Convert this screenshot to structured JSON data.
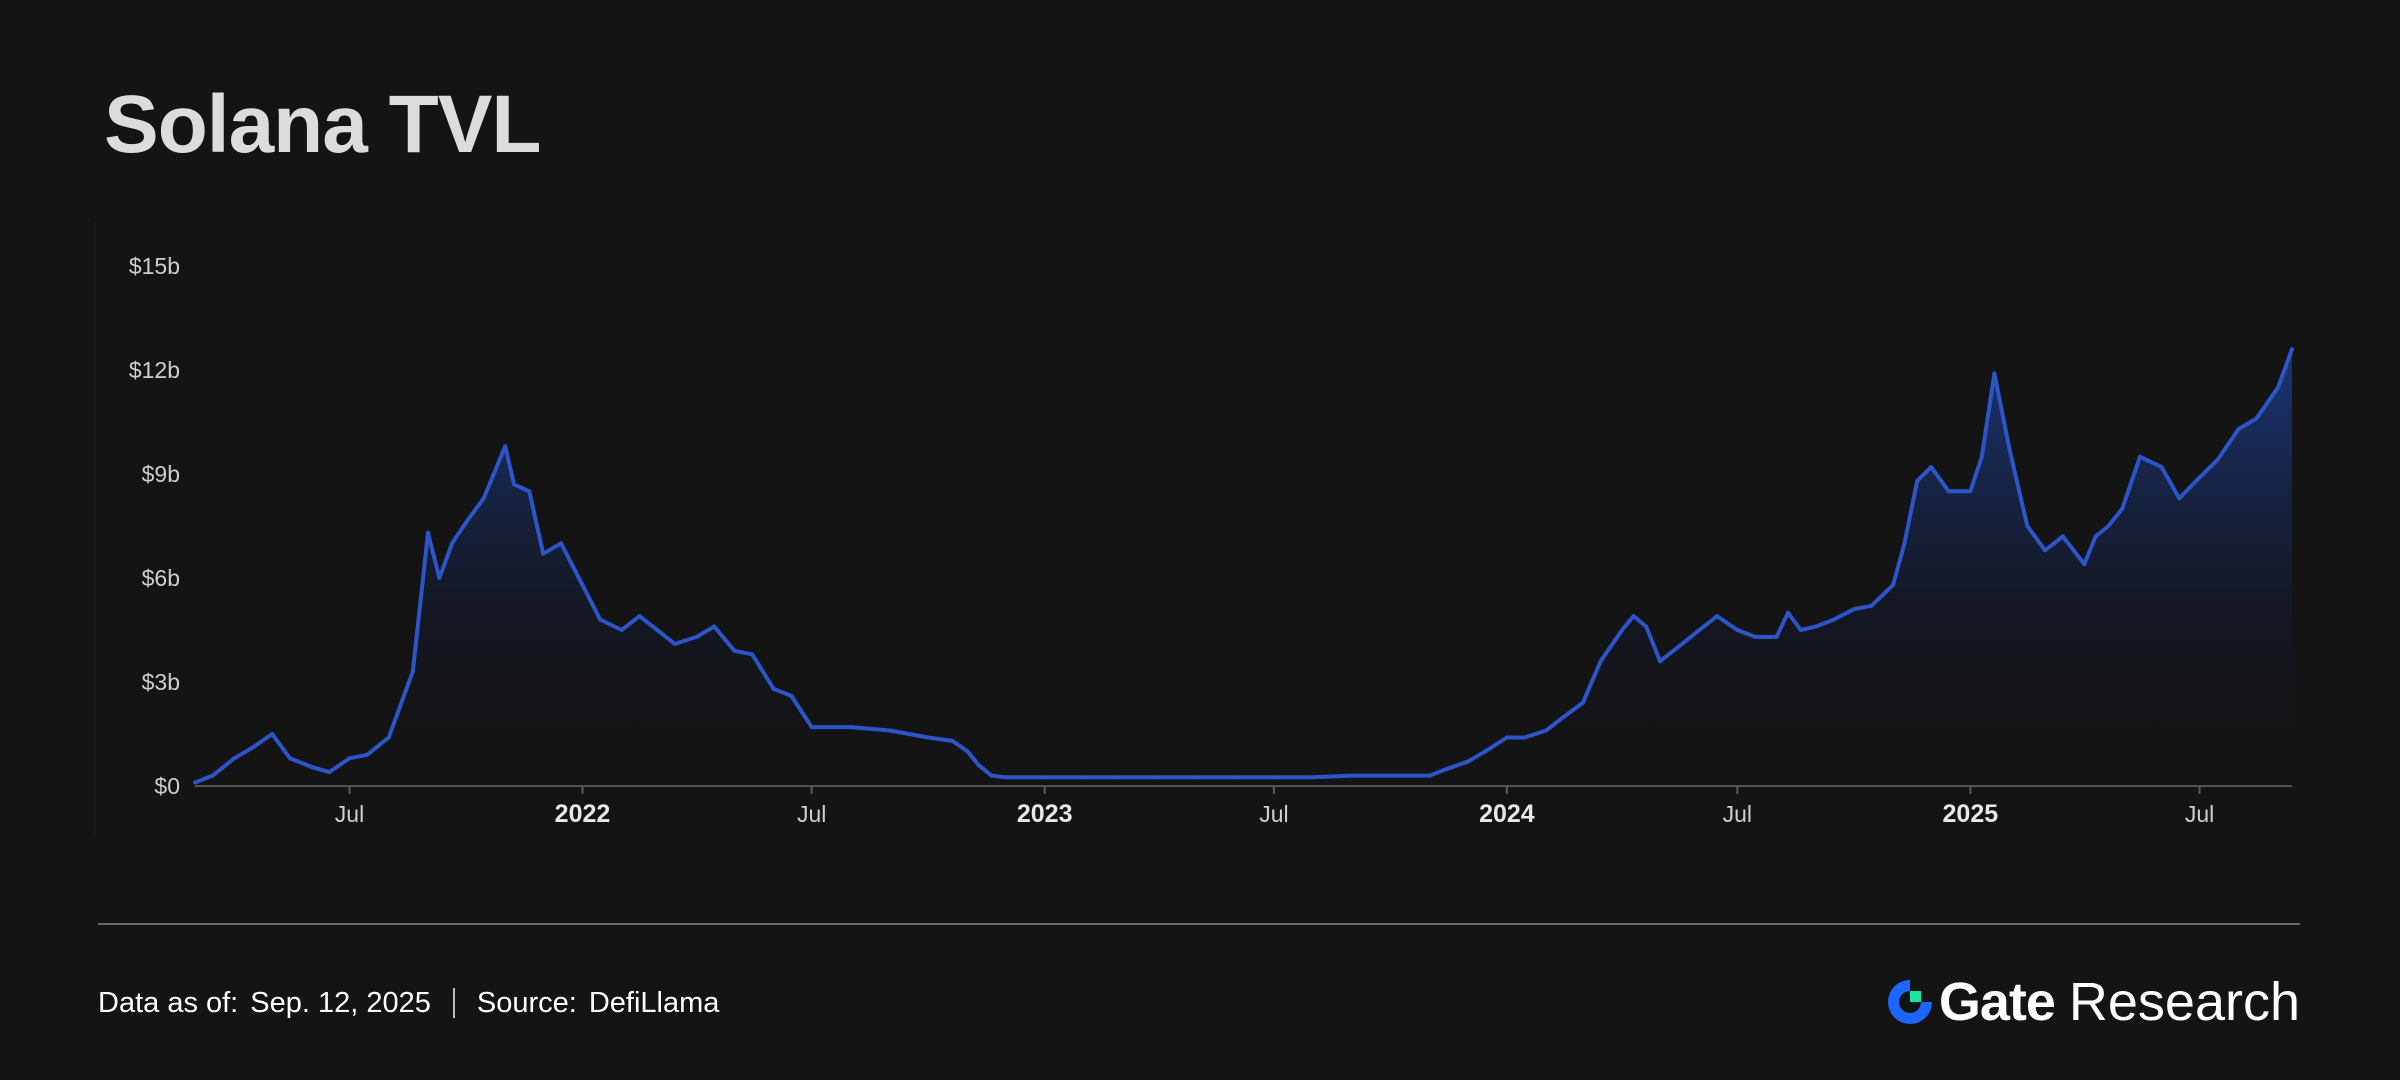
{
  "title": "Solana TVL",
  "footer": {
    "data_as_of_label": "Data as of:",
    "data_as_of_value": "Sep. 12, 2025",
    "source_label": "Source:",
    "source_value": "DefiLlama"
  },
  "brand": {
    "name": "Gate",
    "suffix": "Research",
    "logo_icon": "gate-logo-icon",
    "colors": {
      "logo_blue": "#1a66ff",
      "logo_green": "#17e5a0"
    }
  },
  "colors": {
    "background": "#141414",
    "line": "#2b55c8",
    "area_top": "#1c3a86",
    "axis": "#5a5a5a",
    "tick_text": "#cfcfcf"
  },
  "chart_data": {
    "type": "area",
    "title": "Solana TVL",
    "xlabel": "",
    "ylabel": "",
    "ylim": [
      0,
      15
    ],
    "xlim": [
      "2021-03-01",
      "2025-09-12"
    ],
    "y_ticks": [
      {
        "value": 0,
        "label": "$0"
      },
      {
        "value": 3,
        "label": "$3b"
      },
      {
        "value": 6,
        "label": "$6b"
      },
      {
        "value": 9,
        "label": "$9b"
      },
      {
        "value": 12,
        "label": "$12b"
      },
      {
        "value": 15,
        "label": "$15b"
      }
    ],
    "x_ticks": [
      {
        "date": "2021-07-01",
        "label": "Jul",
        "bold": false
      },
      {
        "date": "2022-01-01",
        "label": "2022",
        "bold": true
      },
      {
        "date": "2022-07-01",
        "label": "Jul",
        "bold": false
      },
      {
        "date": "2023-01-01",
        "label": "2023",
        "bold": true
      },
      {
        "date": "2023-07-01",
        "label": "Jul",
        "bold": false
      },
      {
        "date": "2024-01-01",
        "label": "2024",
        "bold": true
      },
      {
        "date": "2024-07-01",
        "label": "Jul",
        "bold": false
      },
      {
        "date": "2025-01-01",
        "label": "2025",
        "bold": true
      },
      {
        "date": "2025-07-01",
        "label": "Jul",
        "bold": false
      }
    ],
    "grid": false,
    "legend": "none",
    "unit": "USD billions",
    "series": [
      {
        "x": [
          "2021-03-01",
          "2021-03-15",
          "2021-04-01",
          "2021-04-15",
          "2021-05-01",
          "2021-05-15",
          "2021-06-01",
          "2021-06-15",
          "2021-07-01",
          "2021-07-15",
          "2021-08-01",
          "2021-08-10",
          "2021-08-20",
          "2021-09-01",
          "2021-09-10",
          "2021-09-20",
          "2021-10-01",
          "2021-10-15",
          "2021-11-01",
          "2021-11-08",
          "2021-11-20",
          "2021-12-01",
          "2021-12-15",
          "2022-01-01",
          "2022-01-15",
          "2022-02-01",
          "2022-02-15",
          "2022-03-01",
          "2022-03-15",
          "2022-04-01",
          "2022-04-15",
          "2022-05-01",
          "2022-05-15",
          "2022-06-01",
          "2022-06-15",
          "2022-07-01",
          "2022-08-01",
          "2022-09-01",
          "2022-10-01",
          "2022-10-20",
          "2022-11-01",
          "2022-11-10",
          "2022-11-20",
          "2022-12-01",
          "2023-01-01",
          "2023-02-01",
          "2023-03-01",
          "2023-04-01",
          "2023-05-01",
          "2023-06-01",
          "2023-07-01",
          "2023-08-01",
          "2023-09-01",
          "2023-10-01",
          "2023-10-20",
          "2023-11-01",
          "2023-11-15",
          "2023-12-01",
          "2023-12-15",
          "2024-01-01",
          "2024-01-15",
          "2024-02-01",
          "2024-02-15",
          "2024-03-01",
          "2024-03-15",
          "2024-04-01",
          "2024-04-10",
          "2024-04-20",
          "2024-05-01",
          "2024-05-15",
          "2024-06-01",
          "2024-06-15",
          "2024-07-01",
          "2024-07-15",
          "2024-08-01",
          "2024-08-10",
          "2024-08-20",
          "2024-09-01",
          "2024-09-15",
          "2024-10-01",
          "2024-10-15",
          "2024-11-01",
          "2024-11-10",
          "2024-11-20",
          "2024-12-01",
          "2024-12-15",
          "2025-01-01",
          "2025-01-10",
          "2025-01-20",
          "2025-02-01",
          "2025-02-15",
          "2025-03-01",
          "2025-03-15",
          "2025-04-01",
          "2025-04-10",
          "2025-04-20",
          "2025-05-01",
          "2025-05-15",
          "2025-06-01",
          "2025-06-15",
          "2025-07-01",
          "2025-07-15",
          "2025-08-01",
          "2025-08-15",
          "2025-09-01",
          "2025-09-12"
        ],
        "y": [
          0.1,
          0.3,
          0.8,
          1.1,
          1.5,
          0.8,
          0.55,
          0.4,
          0.8,
          0.9,
          1.4,
          2.3,
          3.3,
          7.3,
          6.0,
          7.0,
          7.6,
          8.3,
          9.8,
          8.7,
          8.5,
          6.7,
          7.0,
          5.8,
          4.8,
          4.5,
          4.9,
          4.5,
          4.1,
          4.3,
          4.6,
          3.9,
          3.8,
          2.8,
          2.6,
          1.7,
          1.7,
          1.6,
          1.4,
          1.3,
          1.0,
          0.6,
          0.3,
          0.25,
          0.25,
          0.25,
          0.25,
          0.25,
          0.25,
          0.25,
          0.25,
          0.25,
          0.3,
          0.3,
          0.3,
          0.3,
          0.5,
          0.7,
          1.0,
          1.4,
          1.4,
          1.6,
          2.0,
          2.4,
          3.6,
          4.5,
          4.9,
          4.6,
          3.6,
          4.0,
          4.5,
          4.9,
          4.5,
          4.3,
          4.3,
          5.0,
          4.5,
          4.6,
          4.8,
          5.1,
          5.2,
          5.8,
          7.0,
          8.8,
          9.2,
          8.5,
          8.5,
          9.5,
          11.9,
          9.7,
          7.5,
          6.8,
          7.2,
          6.4,
          7.2,
          7.5,
          8.0,
          9.5,
          9.2,
          8.3,
          8.9,
          9.4,
          10.3,
          10.6,
          11.5,
          12.6
        ]
      }
    ]
  }
}
